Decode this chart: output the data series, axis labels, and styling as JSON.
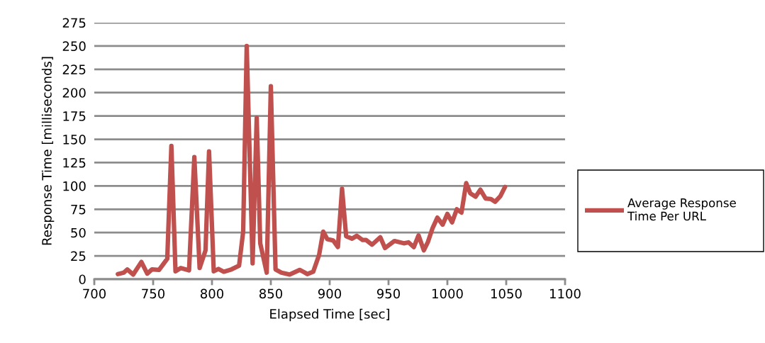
{
  "chart_data": {
    "type": "line",
    "xlabel": "Elapsed Time [sec]",
    "ylabel": "Response Time [milliseconds]",
    "xlim": [
      700,
      1100
    ],
    "xticks": [
      700,
      750,
      800,
      850,
      900,
      950,
      1000,
      1050,
      1100
    ],
    "ylim": [
      0,
      275
    ],
    "yticks": [
      0,
      25,
      50,
      75,
      100,
      125,
      150,
      175,
      200,
      225,
      250,
      275
    ],
    "grid": "y",
    "legend": "right",
    "marker": "none",
    "line_style": "solid",
    "series": [
      {
        "name": "Average Response Time Per URL",
        "color": "#c0504d",
        "x": [
          720,
          725,
          728,
          733,
          740,
          745,
          749,
          755,
          762,
          765.5,
          769,
          773.5,
          780.5,
          785,
          789.5,
          794.5,
          797.5,
          801.5,
          805.5,
          810,
          816.5,
          823,
          826.5,
          829.5,
          834.5,
          838,
          841,
          846.5,
          850,
          854,
          859,
          866,
          874.5,
          879,
          881,
          886,
          891,
          894.5,
          898,
          903,
          907,
          910.5,
          914,
          919,
          923,
          928,
          931,
          936,
          943,
          947,
          955,
          963,
          967,
          971.5,
          975.5,
          980,
          983.5,
          987.5,
          991.5,
          996,
          1000,
          1004,
          1008,
          1012,
          1016,
          1019.5,
          1024,
          1028,
          1032.5,
          1037,
          1040.5,
          1045,
          1049
        ],
        "values": [
          5.5,
          7,
          10.5,
          5,
          18.5,
          6,
          10.5,
          10,
          22,
          143,
          8.5,
          12,
          9.5,
          131,
          12,
          31,
          137,
          8.5,
          11,
          8,
          10.5,
          14.5,
          51,
          250,
          17,
          173,
          38.5,
          7,
          207,
          10.5,
          7,
          5,
          10,
          7,
          5.5,
          8,
          26,
          51,
          43,
          41.5,
          34.5,
          97,
          46,
          43.5,
          46.5,
          42,
          42,
          37,
          45,
          33.5,
          41,
          38.5,
          39.5,
          34.5,
          47,
          31,
          40,
          55,
          66,
          58.5,
          70,
          61,
          75,
          71.5,
          103,
          92,
          88.5,
          96,
          86.5,
          86,
          83,
          89,
          99
        ]
      }
    ]
  }
}
